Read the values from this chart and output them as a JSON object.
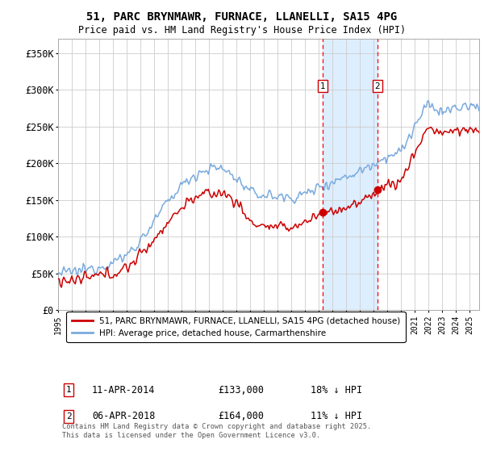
{
  "title": "51, PARC BRYNMAWR, FURNACE, LLANELLI, SA15 4PG",
  "subtitle": "Price paid vs. HM Land Registry's House Price Index (HPI)",
  "ylabel_ticks": [
    "£0",
    "£50K",
    "£100K",
    "£150K",
    "£200K",
    "£250K",
    "£300K",
    "£350K"
  ],
  "ytick_vals": [
    0,
    50000,
    100000,
    150000,
    200000,
    250000,
    300000,
    350000
  ],
  "ylim": [
    0,
    370000
  ],
  "xlim_start": 1995.0,
  "xlim_end": 2025.7,
  "marker1_x": 2014.27,
  "marker2_x": 2018.27,
  "marker1_price": 133000,
  "marker2_price": 164000,
  "marker1_label": "11-APR-2014",
  "marker2_label": "06-APR-2018",
  "marker1_hpi_text": "18% ↓ HPI",
  "marker2_hpi_text": "11% ↓ HPI",
  "legend_red": "51, PARC BRYNMAWR, FURNACE, LLANELLI, SA15 4PG (detached house)",
  "legend_blue": "HPI: Average price, detached house, Carmarthenshire",
  "footer": "Contains HM Land Registry data © Crown copyright and database right 2025.\nThis data is licensed under the Open Government Licence v3.0.",
  "shade_color": "#ddeeff",
  "grid_color": "#cccccc",
  "red_color": "#cc0000",
  "blue_color": "#7aaadd"
}
